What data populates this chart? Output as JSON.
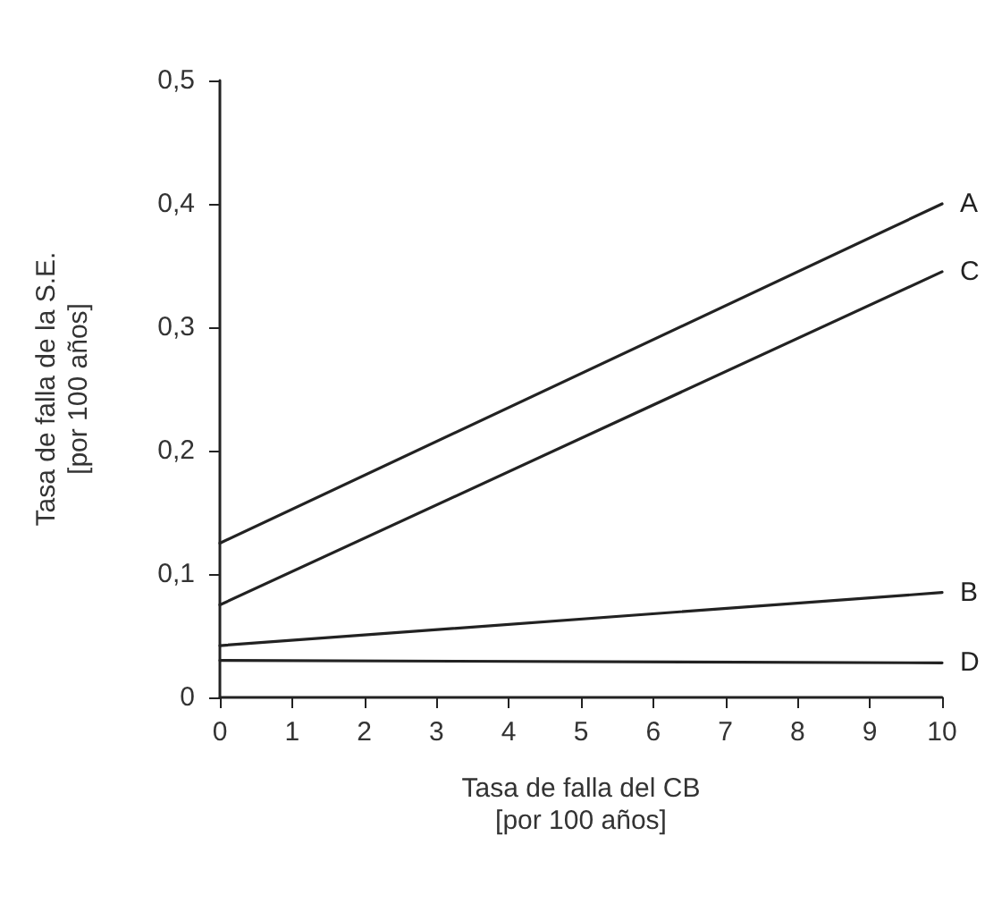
{
  "chart_data": {
    "type": "line",
    "xlabel": "Tasa de falla del CB\n[por 100 años]",
    "ylabel": "Tasa de falla de la S.E.\n[por 100 años]",
    "x": [
      0,
      10
    ],
    "series": [
      {
        "name": "A",
        "color": "#222222",
        "values": [
          0.125,
          0.4
        ]
      },
      {
        "name": "C",
        "color": "#222222",
        "values": [
          0.075,
          0.345
        ]
      },
      {
        "name": "B",
        "color": "#222222",
        "values": [
          0.042,
          0.085
        ]
      },
      {
        "name": "D",
        "color": "#222222",
        "values": [
          0.03,
          0.028
        ]
      }
    ],
    "xlim": [
      0,
      10
    ],
    "xticks": [
      0,
      1,
      2,
      3,
      4,
      5,
      6,
      7,
      8,
      9,
      10
    ],
    "ylim": [
      0,
      0.5
    ],
    "yticks": [
      {
        "value": 0,
        "label": "0"
      },
      {
        "value": 0.1,
        "label": "0,1"
      },
      {
        "value": 0.2,
        "label": "0,2"
      },
      {
        "value": 0.3,
        "label": "0,3"
      },
      {
        "value": 0.4,
        "label": "0,4"
      },
      {
        "value": 0.5,
        "label": "0,5"
      }
    ],
    "grid": false,
    "legend": false,
    "marker": "none",
    "line_style": "solid"
  }
}
